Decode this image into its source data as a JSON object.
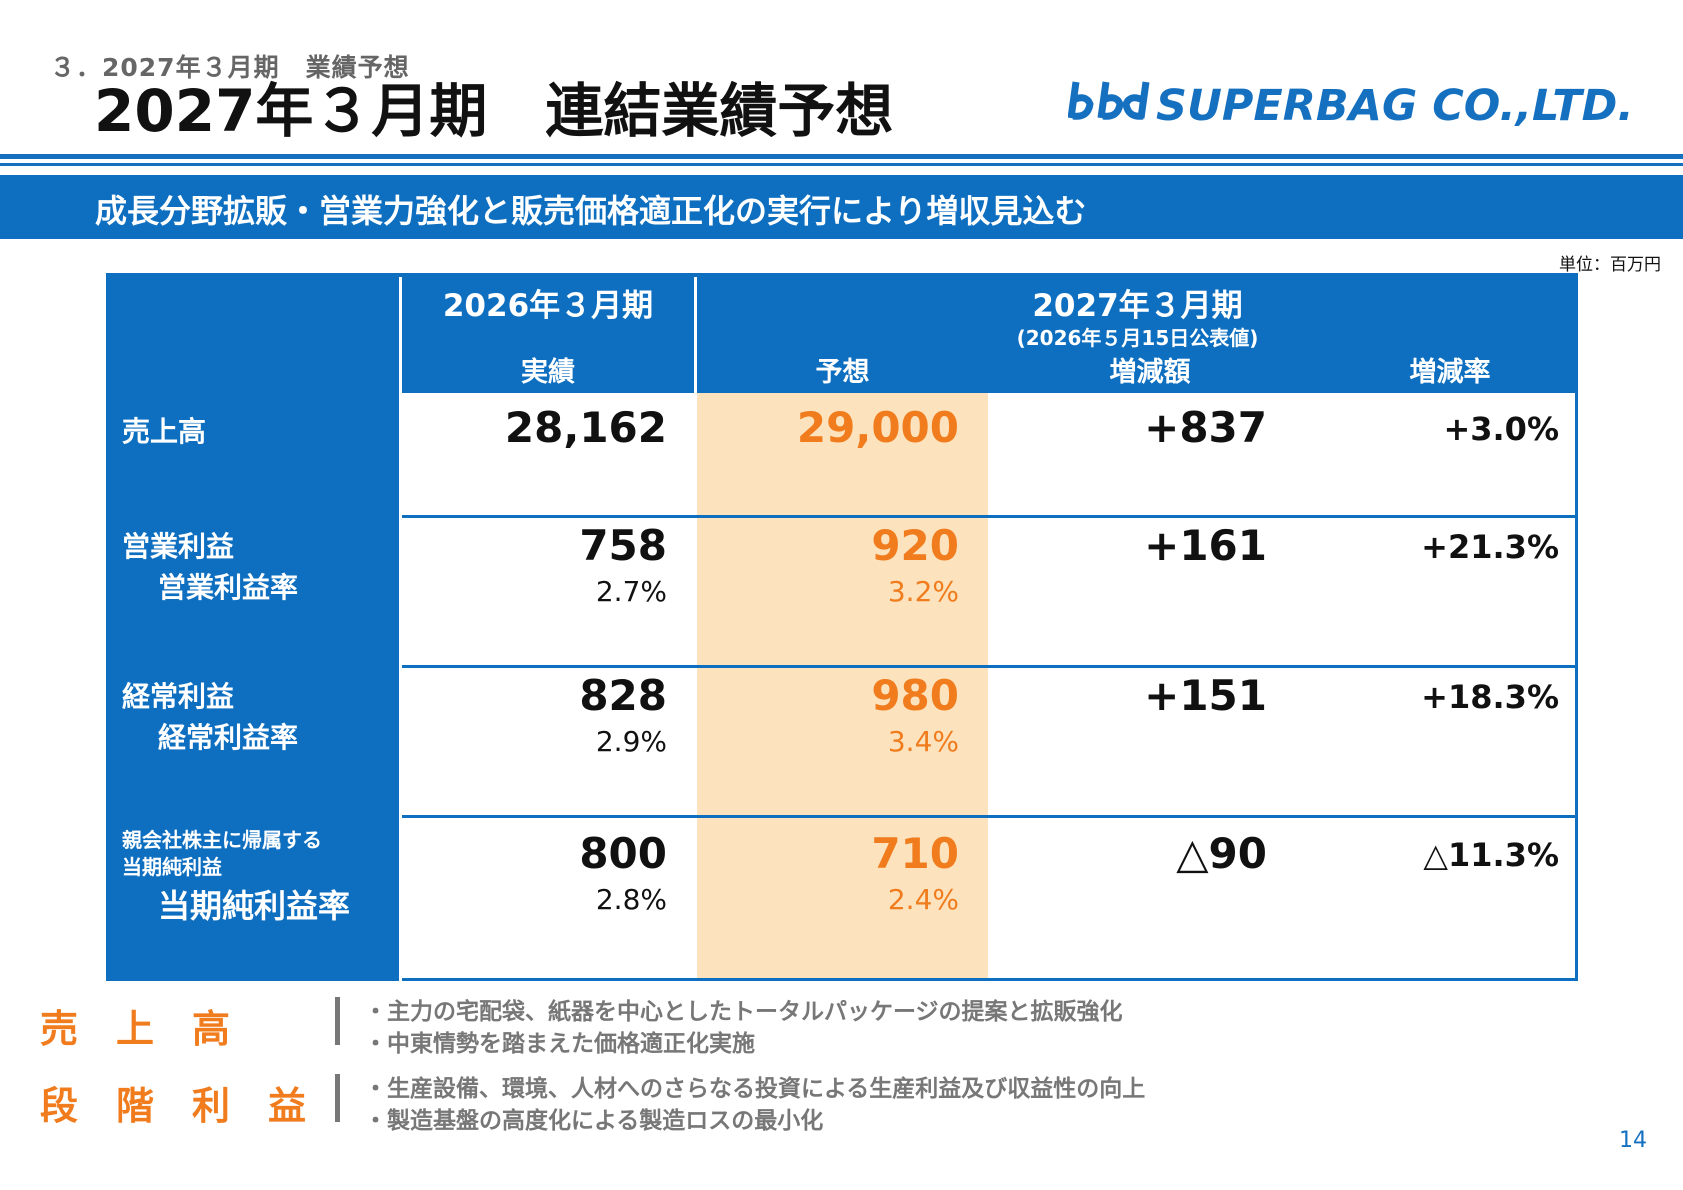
{
  "header": {
    "section_label": "３．2027年３月期　業績予想",
    "title": "2027年３月期　連結業績予想",
    "logo_text": "SUPERBAG CO.,LTD.",
    "brand_color": "#1670c0"
  },
  "banner": {
    "text": "成長分野拡販・営業力強化と販売価格適正化の実行により増収見込む"
  },
  "unit_label": "単位：百万円",
  "table": {
    "col_fy2026": "2026年３月期",
    "col_fy2026_sub": "実績",
    "col_fy2027": "2027年３月期",
    "col_fy2027_note": "(2026年５月15日公表値)",
    "col_forecast": "予想",
    "col_change_amount": "増減額",
    "col_change_rate": "増減率",
    "rows": [
      {
        "label": "売上高",
        "fy2026": "28,162",
        "forecast": "29,000",
        "change_amount": "+837",
        "change_rate": "+3.0%"
      },
      {
        "label": "営業利益",
        "sub_label": "営業利益率",
        "fy2026": "758",
        "fy2026_pct": "2.7%",
        "forecast": "920",
        "forecast_pct": "3.2%",
        "change_amount": "+161",
        "change_rate": "+21.3%"
      },
      {
        "label": "経常利益",
        "sub_label": "経常利益率",
        "fy2026": "828",
        "fy2026_pct": "2.9%",
        "forecast": "980",
        "forecast_pct": "3.4%",
        "change_amount": "+151",
        "change_rate": "+18.3%"
      },
      {
        "label_line1": "親会社株主に帰属する",
        "label_line2": "当期純利益",
        "sub_label": "当期純利益率",
        "fy2026": "800",
        "fy2026_pct": "2.8%",
        "forecast": "710",
        "forecast_pct": "2.4%",
        "change_amount": "△90",
        "change_rate": "△11.3%"
      }
    ]
  },
  "summary": [
    {
      "label": "売　上　高",
      "items": [
        "・主力の宅配袋、紙器を中心としたトータルパッケージの提案と拡販強化",
        "・中東情勢を踏まえた価格適正化実施"
      ]
    },
    {
      "label": "段　階　利　益",
      "items": [
        "・生産設備、環境、人材へのさらなる投資による生産利益及び収益性の向上",
        "・製造基盤の高度化による製造ロスの最小化"
      ]
    }
  ],
  "page_number": "14",
  "colors": {
    "header_blue": "#0e6fc0",
    "forecast_highlight": "#fde3bd",
    "accent_orange": "#f07c1e",
    "gray_text": "#777777"
  }
}
